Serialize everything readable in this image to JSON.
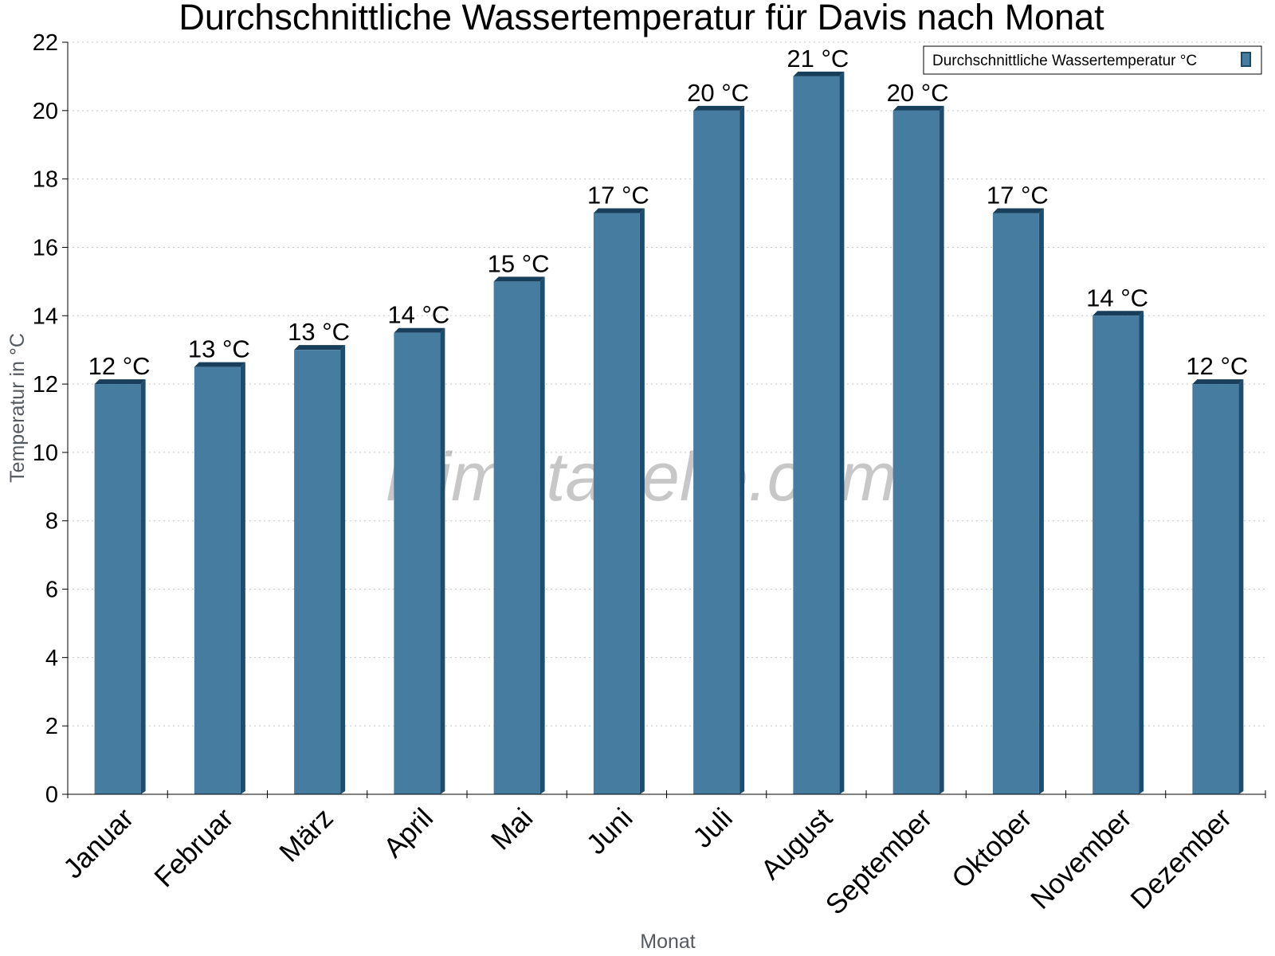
{
  "chart_data": {
    "type": "bar",
    "title": "Durchschnittliche Wassertemperatur für Davis nach Monat",
    "xlabel": "Monat",
    "ylabel": "Temperatur in °C",
    "ylim": [
      0,
      22
    ],
    "yticks": [
      "0",
      "2",
      "4",
      "6",
      "8",
      "10",
      "12",
      "14",
      "16",
      "18",
      "20",
      "22"
    ],
    "grid": true,
    "legend_position": "top-right",
    "categories": [
      "Januar",
      "Februar",
      "März",
      "April",
      "Mai",
      "Juni",
      "Juli",
      "August",
      "September",
      "Oktober",
      "November",
      "Dezember"
    ],
    "series": [
      {
        "name": "Durchschnittliche Wassertemperatur °C",
        "color": "#467c9f",
        "values": [
          12,
          12.5,
          13,
          13.5,
          15,
          17,
          20,
          21,
          20,
          17,
          14,
          12
        ],
        "labels": [
          "12 °C",
          "13 °C",
          "13 °C",
          "14 °C",
          "15 °C",
          "17 °C",
          "20 °C",
          "21 °C",
          "20 °C",
          "17 °C",
          "14 °C",
          "12 °C"
        ]
      }
    ],
    "watermark": "klimatabelle.com"
  }
}
